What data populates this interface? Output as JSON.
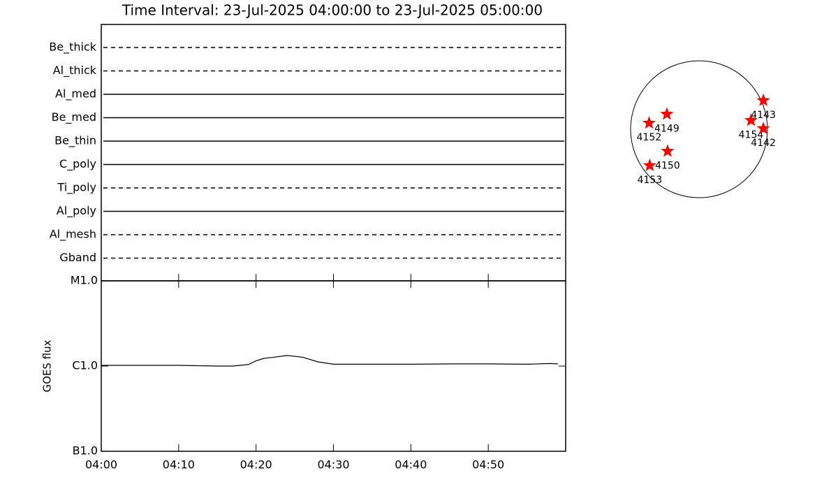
{
  "title": "Time Interval: 23-Jul-2025 04:00:00 to 23-Jul-2025 05:00:00",
  "chart_data": [
    {
      "type": "timeline",
      "xlim": [
        "04:00",
        "05:00"
      ],
      "filters": [
        {
          "name": "Be_thick",
          "observed": false
        },
        {
          "name": "Al_thick",
          "observed": false
        },
        {
          "name": "Al_med",
          "observed": true
        },
        {
          "name": "Be_med",
          "observed": true
        },
        {
          "name": "Be_thin",
          "observed": true
        },
        {
          "name": "C_poly",
          "observed": true
        },
        {
          "name": "Ti_poly",
          "observed": false
        },
        {
          "name": "Al_poly",
          "observed": true
        },
        {
          "name": "Al_mesh",
          "observed": false
        },
        {
          "name": "Gband",
          "observed": false
        }
      ]
    },
    {
      "type": "line",
      "y_label": "GOES flux",
      "log_y": true,
      "color": "#000000",
      "xlim": [
        "04:00",
        "05:00"
      ],
      "xticks": [
        "04:00",
        "04:10",
        "04:20",
        "04:30",
        "04:40",
        "04:50"
      ],
      "ylim": [
        1e-07,
        1e-05
      ],
      "yticks": [
        {
          "value": 1e-07,
          "label": "B1.0"
        },
        {
          "value": 1e-06,
          "label": "C1.0"
        },
        {
          "value": 1e-05,
          "label": "M1.0"
        }
      ],
      "x": [
        "04:00",
        "04:05",
        "04:10",
        "04:15",
        "04:17",
        "04:19",
        "04:20",
        "04:21",
        "04:22",
        "04:24",
        "04:26",
        "04:28",
        "04:30",
        "04:35",
        "04:40",
        "04:45",
        "04:50",
        "04:55",
        "04:58",
        "04:59"
      ],
      "values": [
        1.02e-06,
        1.02e-06,
        1.02e-06,
        1e-06,
        1e-06,
        1.04e-06,
        1.15e-06,
        1.23e-06,
        1.26e-06,
        1.33e-06,
        1.27e-06,
        1.12e-06,
        1.05e-06,
        1.05e-06,
        1.05e-06,
        1.06e-06,
        1.06e-06,
        1.05e-06,
        1.07e-06,
        1.06e-06
      ]
    },
    {
      "type": "scatter",
      "color": "#ff0000",
      "labels": [
        "4143",
        "4149",
        "4152",
        "4154",
        "4142",
        "4150",
        "4153"
      ],
      "x": [
        0.94,
        -0.47,
        -0.73,
        0.76,
        0.94,
        -0.46,
        -0.72
      ],
      "values": [
        0.42,
        0.22,
        0.09,
        0.13,
        0.01,
        -0.32,
        -0.53
      ]
    }
  ]
}
